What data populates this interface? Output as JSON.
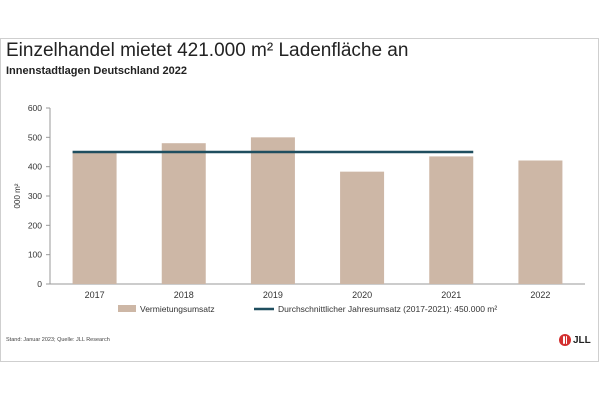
{
  "header": {
    "title": "Einzelhandel mietet 421.000 m² Ladenfläche an",
    "subtitle": "Innenstadtlagen Deutschland 2022"
  },
  "footer": {
    "source": "Stand: Januar 2023; Quelle: JLL Research",
    "logo_text": "JLL"
  },
  "colors": {
    "bar": "#cdb7a6",
    "line": "#1f4e5f",
    "axis": "#9a9a9a",
    "text": "#333333"
  },
  "chart_data": {
    "type": "bar",
    "categories": [
      "2017",
      "2018",
      "2019",
      "2020",
      "2021",
      "2022"
    ],
    "series": [
      {
        "name": "Vermietungsumsatz",
        "values": [
          450,
          480,
          500,
          383,
          435,
          421
        ]
      },
      {
        "name": "Durchschnittlicher Jahresumsatz (2017-2021): 450.000 m²",
        "values": [
          450,
          450,
          450,
          450,
          450,
          null
        ]
      }
    ],
    "ylabel": "000 m²",
    "ylim": [
      0,
      600
    ],
    "yticks": [
      0,
      100,
      200,
      300,
      400,
      500,
      600
    ],
    "legend": "bottom",
    "grid": false
  }
}
